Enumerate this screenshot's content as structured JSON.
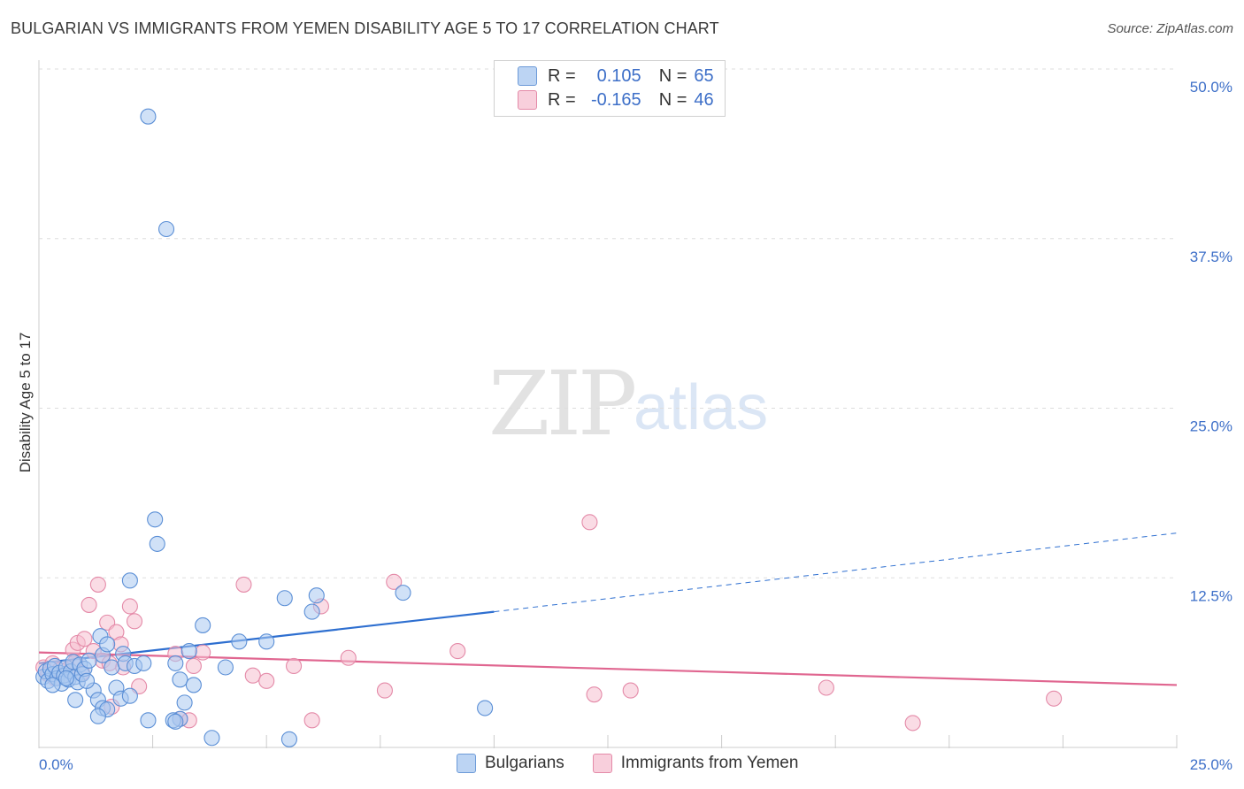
{
  "title": "BULGARIAN VS IMMIGRANTS FROM YEMEN DISABILITY AGE 5 TO 17 CORRELATION CHART",
  "source": "Source: ZipAtlas.com",
  "watermark": {
    "zip": "ZIP",
    "atlas": "atlas"
  },
  "legend": {
    "r_label": "R =",
    "n_label": "N =",
    "series1": {
      "r": "0.105",
      "n": "65"
    },
    "series2": {
      "r": "-0.165",
      "n": "46"
    }
  },
  "bottom_legend": {
    "series1": "Bulgarians",
    "series2": "Immigrants from Yemen"
  },
  "colors": {
    "blue_fill": "#a9c8f0",
    "blue_stroke": "#5b8fd6",
    "blue_line": "#2e6fd0",
    "pink_fill": "#f5c0d0",
    "pink_stroke": "#e48aa8",
    "pink_line": "#e06690",
    "grid": "#dddddd",
    "tick_text": "#3d6fc8"
  },
  "chart_data": {
    "type": "scatter",
    "title": "BULGARIAN VS IMMIGRANTS FROM YEMEN DISABILITY AGE 5 TO 17 CORRELATION CHART",
    "xlabel": "",
    "ylabel": "Disability Age 5 to 17",
    "xlim": [
      0,
      25
    ],
    "ylim": [
      0,
      50
    ],
    "x_tick_labels": [
      "0.0%",
      "25.0%"
    ],
    "y_ticks": [
      12.5,
      25.0,
      37.5,
      50.0
    ],
    "y_tick_labels": [
      "12.5%",
      "25.0%",
      "37.5%",
      "50.0%"
    ],
    "grid": true,
    "legend_position": "top-center",
    "series": [
      {
        "name": "Bulgarians",
        "color": "#a9c8f0",
        "trend": {
          "x": [
            0,
            10
          ],
          "y": [
            6.2,
            10.0
          ],
          "dashed_to": [
            25,
            15.8
          ]
        },
        "points": [
          [
            0.1,
            5.2
          ],
          [
            0.15,
            5.6
          ],
          [
            0.2,
            4.9
          ],
          [
            0.25,
            5.8
          ],
          [
            0.3,
            5.4
          ],
          [
            0.35,
            6.0
          ],
          [
            0.4,
            5.1
          ],
          [
            0.45,
            5.5
          ],
          [
            0.5,
            4.7
          ],
          [
            0.55,
            5.3
          ],
          [
            0.6,
            5.9
          ],
          [
            0.65,
            5.0
          ],
          [
            0.7,
            5.6
          ],
          [
            0.75,
            6.3
          ],
          [
            0.8,
            5.2
          ],
          [
            0.85,
            4.8
          ],
          [
            0.9,
            6.1
          ],
          [
            0.95,
            5.4
          ],
          [
            1.0,
            5.8
          ],
          [
            1.1,
            6.4
          ],
          [
            1.2,
            4.2
          ],
          [
            1.3,
            3.5
          ],
          [
            1.35,
            8.2
          ],
          [
            1.4,
            6.8
          ],
          [
            1.5,
            7.6
          ],
          [
            1.6,
            5.9
          ],
          [
            1.7,
            4.4
          ],
          [
            1.8,
            3.6
          ],
          [
            1.85,
            6.9
          ],
          [
            1.9,
            6.2
          ],
          [
            2.0,
            12.3
          ],
          [
            2.1,
            6.0
          ],
          [
            2.3,
            6.2
          ],
          [
            2.4,
            46.5
          ],
          [
            2.55,
            16.8
          ],
          [
            2.6,
            15.0
          ],
          [
            2.8,
            38.2
          ],
          [
            3.0,
            6.2
          ],
          [
            3.1,
            5.0
          ],
          [
            3.2,
            3.3
          ],
          [
            3.4,
            4.6
          ],
          [
            3.6,
            9.0
          ],
          [
            3.8,
            0.7
          ],
          [
            4.4,
            7.8
          ],
          [
            5.0,
            7.8
          ],
          [
            5.4,
            11.0
          ],
          [
            5.5,
            0.6
          ],
          [
            6.0,
            10.0
          ],
          [
            6.1,
            11.2
          ],
          [
            1.4,
            2.9
          ],
          [
            1.5,
            2.8
          ],
          [
            1.3,
            2.3
          ],
          [
            0.8,
            3.5
          ],
          [
            2.0,
            3.8
          ],
          [
            3.1,
            2.1
          ],
          [
            0.3,
            4.6
          ],
          [
            0.6,
            5.1
          ],
          [
            1.05,
            4.9
          ],
          [
            2.4,
            2.0
          ],
          [
            2.95,
            2.0
          ],
          [
            3.3,
            7.1
          ],
          [
            4.1,
            5.9
          ],
          [
            3.0,
            1.9
          ],
          [
            8.0,
            11.4
          ],
          [
            9.8,
            2.9
          ]
        ]
      },
      {
        "name": "Immigrants from Yemen",
        "color": "#f5c0d0",
        "trend": {
          "x": [
            0,
            25
          ],
          "y": [
            7.0,
            4.6
          ]
        },
        "points": [
          [
            0.1,
            5.9
          ],
          [
            0.2,
            5.4
          ],
          [
            0.3,
            6.2
          ],
          [
            0.35,
            5.1
          ],
          [
            0.45,
            5.7
          ],
          [
            0.55,
            5.3
          ],
          [
            0.65,
            5.8
          ],
          [
            0.75,
            7.2
          ],
          [
            0.8,
            6.3
          ],
          [
            0.85,
            7.7
          ],
          [
            0.95,
            5.5
          ],
          [
            1.0,
            8.0
          ],
          [
            1.1,
            10.5
          ],
          [
            1.2,
            7.1
          ],
          [
            1.3,
            12.0
          ],
          [
            1.4,
            6.4
          ],
          [
            1.5,
            9.2
          ],
          [
            1.55,
            6.2
          ],
          [
            1.6,
            3.0
          ],
          [
            1.7,
            8.5
          ],
          [
            1.8,
            7.6
          ],
          [
            1.85,
            5.9
          ],
          [
            2.0,
            10.4
          ],
          [
            2.1,
            9.3
          ],
          [
            2.2,
            4.5
          ],
          [
            3.0,
            6.9
          ],
          [
            3.1,
            2.1
          ],
          [
            3.3,
            2.0
          ],
          [
            3.4,
            6.0
          ],
          [
            3.6,
            7.0
          ],
          [
            4.5,
            12.0
          ],
          [
            4.7,
            5.3
          ],
          [
            5.0,
            4.9
          ],
          [
            5.6,
            6.0
          ],
          [
            6.0,
            2.0
          ],
          [
            6.2,
            10.4
          ],
          [
            6.8,
            6.6
          ],
          [
            7.6,
            4.2
          ],
          [
            7.8,
            12.2
          ],
          [
            9.2,
            7.1
          ],
          [
            12.1,
            16.6
          ],
          [
            12.2,
            3.9
          ],
          [
            13.0,
            4.2
          ],
          [
            17.3,
            4.4
          ],
          [
            19.2,
            1.8
          ],
          [
            22.3,
            3.6
          ]
        ]
      }
    ]
  }
}
